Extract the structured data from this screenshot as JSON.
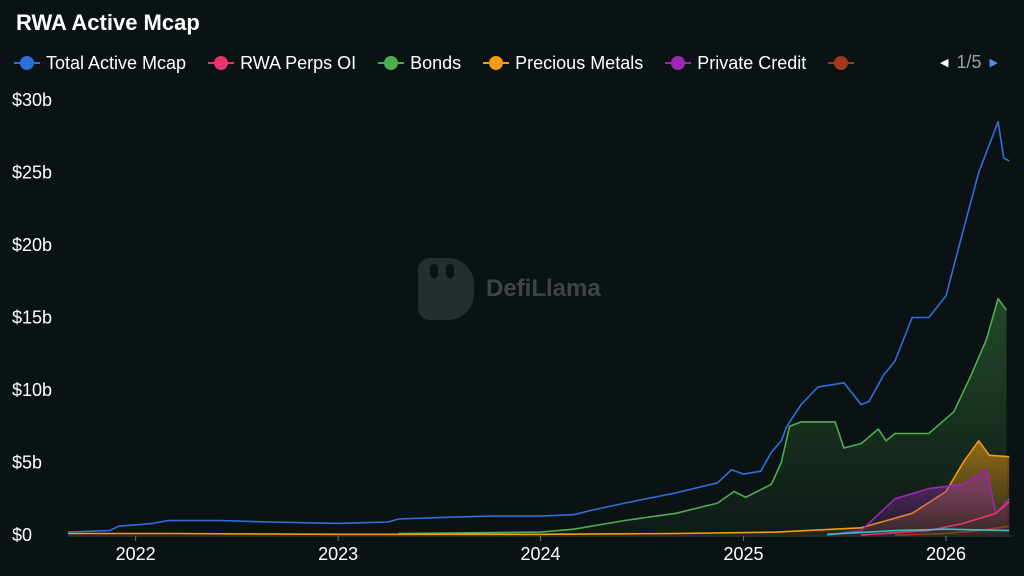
{
  "title": "RWA Active Mcap",
  "legend": {
    "items": [
      {
        "label": "Total Active Mcap",
        "color": "#2f6fdc"
      },
      {
        "label": "RWA Perps OI",
        "color": "#e8336d"
      },
      {
        "label": "Bonds",
        "color": "#4cae4f"
      },
      {
        "label": "Precious Metals",
        "color": "#f39c12"
      },
      {
        "label": "Private Credit",
        "color": "#9c27b0"
      },
      {
        "label": "",
        "color": "#a0391c"
      }
    ],
    "page": "1/5"
  },
  "watermark": "DefiLlama",
  "chart_data": {
    "type": "area",
    "title": "RWA Active Mcap",
    "xlabel": "",
    "ylabel": "",
    "x_ticks": [
      "2022",
      "2023",
      "2024",
      "2025",
      "2026"
    ],
    "y_ticks": [
      "$0",
      "$5b",
      "$10b",
      "$15b",
      "$20b",
      "$25b",
      "$30b"
    ],
    "ylim": [
      0,
      30
    ],
    "xlim": [
      "2021-09-01",
      "2026-04-30"
    ],
    "units": "$b",
    "grid": false,
    "legend_position": "top",
    "series": [
      {
        "name": "Total Active Mcap",
        "color": "#2f6fdc",
        "fill": false,
        "points": [
          [
            "2021-09-01",
            0.2
          ],
          [
            "2021-11-15",
            0.3
          ],
          [
            "2021-12-01",
            0.6
          ],
          [
            "2022-02-01",
            0.8
          ],
          [
            "2022-03-01",
            1.0
          ],
          [
            "2022-06-01",
            1.0
          ],
          [
            "2022-09-01",
            0.9
          ],
          [
            "2023-01-01",
            0.8
          ],
          [
            "2023-04-01",
            0.9
          ],
          [
            "2023-04-20",
            1.1
          ],
          [
            "2023-07-01",
            1.2
          ],
          [
            "2023-10-01",
            1.3
          ],
          [
            "2024-01-01",
            1.3
          ],
          [
            "2024-03-01",
            1.4
          ],
          [
            "2024-04-01",
            1.7
          ],
          [
            "2024-06-01",
            2.2
          ],
          [
            "2024-09-01",
            2.9
          ],
          [
            "2024-11-15",
            3.6
          ],
          [
            "2024-12-10",
            4.5
          ],
          [
            "2025-01-01",
            4.2
          ],
          [
            "2025-02-01",
            4.4
          ],
          [
            "2025-02-20",
            5.7
          ],
          [
            "2025-03-10",
            6.5
          ],
          [
            "2025-03-20",
            7.5
          ],
          [
            "2025-04-15",
            9.0
          ],
          [
            "2025-05-15",
            10.2
          ],
          [
            "2025-07-01",
            10.5
          ],
          [
            "2025-08-01",
            9.0
          ],
          [
            "2025-08-15",
            9.2
          ],
          [
            "2025-09-10",
            11.0
          ],
          [
            "2025-10-01",
            12.0
          ],
          [
            "2025-11-01",
            15.0
          ],
          [
            "2025-12-01",
            15.0
          ],
          [
            "2026-01-01",
            16.5
          ],
          [
            "2026-02-01",
            21.0
          ],
          [
            "2026-03-01",
            25.0
          ],
          [
            "2026-04-05",
            28.5
          ],
          [
            "2026-04-15",
            26.0
          ],
          [
            "2026-04-25",
            25.8
          ]
        ]
      },
      {
        "name": "Bonds",
        "color": "#4cae4f",
        "fill": true,
        "points": [
          [
            "2023-04-20",
            0.1
          ],
          [
            "2024-01-01",
            0.2
          ],
          [
            "2024-03-01",
            0.4
          ],
          [
            "2024-06-01",
            1.0
          ],
          [
            "2024-09-01",
            1.5
          ],
          [
            "2024-11-15",
            2.2
          ],
          [
            "2024-12-15",
            3.0
          ],
          [
            "2025-01-05",
            2.6
          ],
          [
            "2025-02-20",
            3.5
          ],
          [
            "2025-03-10",
            5.0
          ],
          [
            "2025-03-25",
            7.5
          ],
          [
            "2025-04-15",
            7.8
          ],
          [
            "2025-06-15",
            7.8
          ],
          [
            "2025-07-01",
            6.0
          ],
          [
            "2025-08-01",
            6.3
          ],
          [
            "2025-09-01",
            7.3
          ],
          [
            "2025-09-15",
            6.5
          ],
          [
            "2025-10-01",
            7.0
          ],
          [
            "2025-12-01",
            7.0
          ],
          [
            "2026-01-15",
            8.5
          ],
          [
            "2026-02-15",
            11.0
          ],
          [
            "2026-03-15",
            13.5
          ],
          [
            "2026-04-05",
            16.3
          ],
          [
            "2026-04-20",
            15.5
          ]
        ]
      },
      {
        "name": "Precious Metals",
        "color": "#f39c12",
        "fill": true,
        "points": [
          [
            "2021-09-01",
            0.1
          ],
          [
            "2021-12-01",
            0.1
          ],
          [
            "2022-03-01",
            0.1
          ],
          [
            "2023-01-01",
            0.05
          ],
          [
            "2024-01-01",
            0.05
          ],
          [
            "2024-09-01",
            0.1
          ],
          [
            "2025-03-01",
            0.2
          ],
          [
            "2025-08-01",
            0.5
          ],
          [
            "2025-11-01",
            1.5
          ],
          [
            "2026-01-01",
            3.0
          ],
          [
            "2026-02-01",
            5.0
          ],
          [
            "2026-03-01",
            6.5
          ],
          [
            "2026-03-20",
            5.5
          ],
          [
            "2026-04-25",
            5.4
          ]
        ]
      },
      {
        "name": "Private Credit",
        "color": "#9c27b0",
        "fill": true,
        "points": [
          [
            "2025-06-01",
            0.0
          ],
          [
            "2025-08-01",
            0.3
          ],
          [
            "2025-10-01",
            2.5
          ],
          [
            "2025-12-01",
            3.2
          ],
          [
            "2026-02-01",
            3.5
          ],
          [
            "2026-03-15",
            4.5
          ],
          [
            "2026-04-01",
            1.5
          ],
          [
            "2026-04-25",
            2.5
          ]
        ]
      },
      {
        "name": "RWA Perps OI",
        "color": "#e8336d",
        "fill": false,
        "points": [
          [
            "2025-08-01",
            0.0
          ],
          [
            "2025-12-01",
            0.3
          ],
          [
            "2026-02-01",
            0.8
          ],
          [
            "2026-04-01",
            1.5
          ],
          [
            "2026-04-25",
            2.3
          ]
        ]
      },
      {
        "name": "",
        "color": "#a0391c",
        "fill": false,
        "points": [
          [
            "2025-10-01",
            0.0
          ],
          [
            "2026-01-01",
            0.1
          ],
          [
            "2026-03-01",
            0.3
          ],
          [
            "2026-04-25",
            0.6
          ]
        ]
      },
      {
        "name": "",
        "color": "#2ec7c9",
        "fill": false,
        "points": [
          [
            "2025-06-01",
            0.05
          ],
          [
            "2025-10-01",
            0.3
          ],
          [
            "2026-01-01",
            0.4
          ],
          [
            "2026-04-25",
            0.3
          ]
        ]
      }
    ]
  }
}
